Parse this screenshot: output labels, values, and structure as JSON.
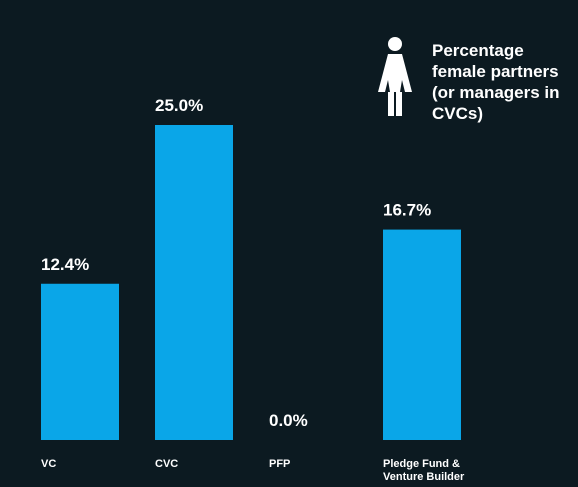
{
  "chart_data": {
    "type": "bar",
    "annotation": "Percentage female partners (or managers in CVCs)",
    "categories": [
      "VC",
      "CVC",
      "PFP",
      "Pledge Fund & Venture Builder"
    ],
    "values": [
      12.4,
      25.0,
      0.0,
      16.7
    ],
    "value_labels": [
      "12.4%",
      "25.0%",
      "0.0%",
      "16.7%"
    ],
    "color": "#0aa6e8"
  }
}
